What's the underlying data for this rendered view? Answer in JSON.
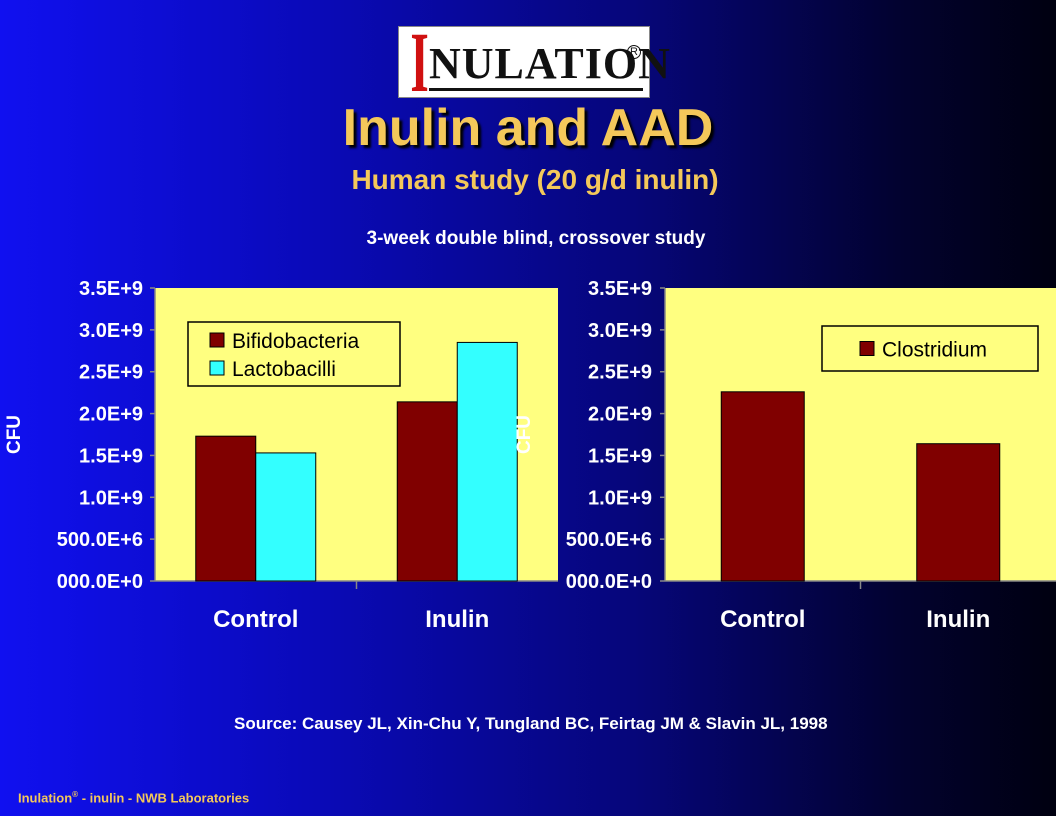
{
  "logo": {
    "initial": "I",
    "rest": "NULATION",
    "reg": "R"
  },
  "title": "Inulin and AAD",
  "subtitle": "Human study (20 g/d inulin)",
  "study": "3-week double blind, crossover study",
  "source": "Source: Causey JL, Xin-Chu Y, Tungland BC, Feirtag JM & Slavin JL, 1998",
  "footer": {
    "brand": "Inulation",
    "reg": "®",
    "rest": " - inulin - NWB Laboratories"
  },
  "colors": {
    "plot_bg": "#ffff80",
    "dark_red": "#800000",
    "cyan": "#33ffff",
    "title": "#f4c85a"
  },
  "chart_data": [
    {
      "type": "bar",
      "categories": [
        "Control",
        "Inulin"
      ],
      "series": [
        {
          "name": "Bifidobacteria",
          "values": [
            1730000000,
            2140000000
          ],
          "color": "#800000"
        },
        {
          "name": "Lactobacilli",
          "values": [
            1530000000,
            2850000000
          ],
          "color": "#33ffff"
        }
      ],
      "ylabel": "CFU",
      "ylim": [
        0,
        3500000000
      ],
      "yticks": [
        "000.0E+0",
        "500.0E+6",
        "1.0E+9",
        "1.5E+9",
        "2.0E+9",
        "2.5E+9",
        "3.0E+9",
        "3.5E+9"
      ],
      "legend": "top-left",
      "grid": false
    },
    {
      "type": "bar",
      "categories": [
        "Control",
        "Inulin"
      ],
      "series": [
        {
          "name": "Clostridium",
          "values": [
            2260000000,
            1640000000
          ],
          "color": "#800000"
        }
      ],
      "ylabel": "CFU",
      "ylim": [
        0,
        3500000000
      ],
      "yticks": [
        "000.0E+0",
        "500.0E+6",
        "1.0E+9",
        "1.5E+9",
        "2.0E+9",
        "2.5E+9",
        "3.0E+9",
        "3.5E+9"
      ],
      "legend": "top-right",
      "grid": false
    }
  ]
}
